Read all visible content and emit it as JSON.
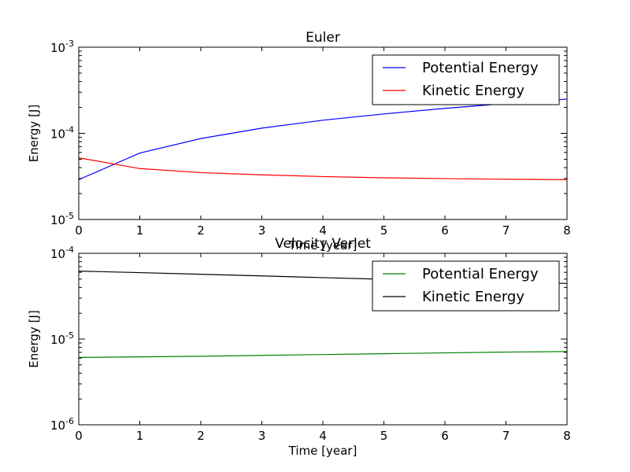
{
  "chart_data": [
    {
      "type": "line",
      "title": "Euler",
      "xlabel": "Time [year]",
      "ylabel": "Energy [J]",
      "x": [
        0,
        1,
        2,
        3,
        4,
        5,
        6,
        7,
        8
      ],
      "xlim": [
        0,
        8
      ],
      "xticks": [
        "0",
        "1",
        "2",
        "3",
        "4",
        "5",
        "6",
        "7",
        "8"
      ],
      "yscale": "log",
      "ylim": [
        1e-05,
        0.001
      ],
      "yticks": [
        {
          "value": 1e-05,
          "base": "10",
          "exp": "-5"
        },
        {
          "value": 0.0001,
          "base": "10",
          "exp": "-4"
        },
        {
          "value": 0.001,
          "base": "10",
          "exp": "-3"
        }
      ],
      "legend": "top-right",
      "grid": false,
      "series": [
        {
          "name": "Potential Energy",
          "color": "#0000ff",
          "values": [
            2.9e-05,
            5.9e-05,
            8.7e-05,
            0.000115,
            0.000142,
            0.000168,
            0.000195,
            0.000222,
            0.00025
          ]
        },
        {
          "name": "Kinetic Energy",
          "color": "#ff0000",
          "values": [
            5.2e-05,
            3.9e-05,
            3.5e-05,
            3.3e-05,
            3.15e-05,
            3.05e-05,
            2.98e-05,
            2.93e-05,
            2.9e-05
          ]
        }
      ]
    },
    {
      "type": "line",
      "title": "Velocity Verlet",
      "xlabel": "Time [year]",
      "ylabel": "Energy [J]",
      "x": [
        0,
        1,
        2,
        3,
        4,
        5,
        6,
        7,
        8
      ],
      "xlim": [
        0,
        8
      ],
      "xticks": [
        "0",
        "1",
        "2",
        "3",
        "4",
        "5",
        "6",
        "7",
        "8"
      ],
      "yscale": "log",
      "ylim": [
        1e-06,
        0.0001
      ],
      "yticks": [
        {
          "value": 1e-06,
          "base": "10",
          "exp": "-6"
        },
        {
          "value": 1e-05,
          "base": "10",
          "exp": "-5"
        },
        {
          "value": 0.0001,
          "base": "10",
          "exp": "-4"
        }
      ],
      "legend": "top-right",
      "grid": false,
      "series": [
        {
          "name": "Potential Energy",
          "color": "#008000",
          "values": [
            6.1e-06,
            6.2e-06,
            6.3e-06,
            6.45e-06,
            6.6e-06,
            6.75e-06,
            6.9e-06,
            7.05e-06,
            7.15e-06
          ]
        },
        {
          "name": "Kinetic Energy",
          "color": "#000000",
          "values": [
            6.2e-05,
            5.95e-05,
            5.7e-05,
            5.45e-05,
            5.2e-05,
            4.98e-05,
            4.78e-05,
            4.6e-05,
            4.45e-05
          ]
        }
      ]
    }
  ]
}
